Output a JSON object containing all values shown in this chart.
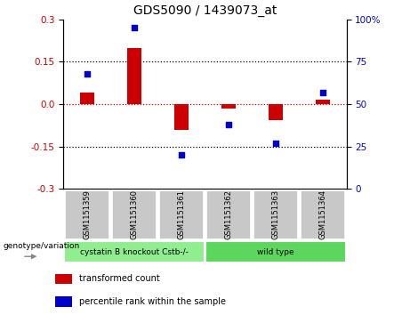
{
  "title": "GDS5090 / 1439073_at",
  "samples": [
    "GSM1151359",
    "GSM1151360",
    "GSM1151361",
    "GSM1151362",
    "GSM1151363",
    "GSM1151364"
  ],
  "transformed_count": [
    0.04,
    0.2,
    -0.09,
    -0.015,
    -0.055,
    0.015
  ],
  "percentile_rank": [
    68,
    95,
    20,
    38,
    27,
    57
  ],
  "ylim_left": [
    -0.3,
    0.3
  ],
  "ylim_right": [
    0,
    100
  ],
  "yticks_left": [
    -0.3,
    -0.15,
    0.0,
    0.15,
    0.3
  ],
  "yticks_right": [
    0,
    25,
    50,
    75,
    100
  ],
  "group_configs": [
    {
      "label": "cystatin B knockout Cstb-/-",
      "start": 0,
      "end": 3,
      "color": "#90EE90"
    },
    {
      "label": "wild type",
      "start": 3,
      "end": 6,
      "color": "#5CD65C"
    }
  ],
  "group_label": "genotype/variation",
  "bar_color": "#CC0000",
  "dot_color": "#0000CC",
  "zero_line_color": "#CC0000",
  "background_color": "#ffffff",
  "plot_bg_color": "#ffffff",
  "sample_box_color": "#c8c8c8",
  "legend_items": [
    {
      "color": "#CC0000",
      "label": "transformed count"
    },
    {
      "color": "#0000CC",
      "label": "percentile rank within the sample"
    }
  ],
  "bar_width": 0.3,
  "dot_size": 25
}
